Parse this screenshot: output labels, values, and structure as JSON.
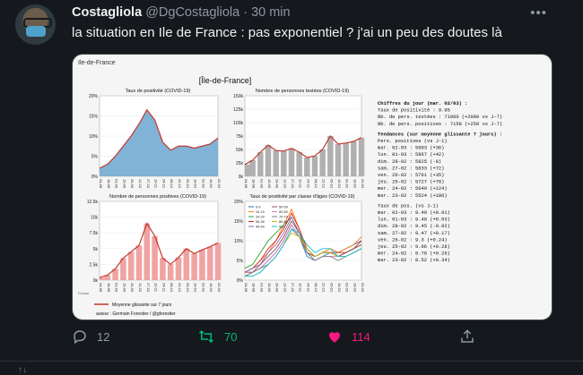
{
  "tweet": {
    "display_name": "Costagliola",
    "handle": "@DgCostagliola",
    "time": "· 30 min",
    "text": "la situation en Ile de France : pas exponentiel ? j'ai un peu des doutes là",
    "more_icon": "ellipsis-icon"
  },
  "actions": {
    "reply_count": "12",
    "retweet_count": "70",
    "like_count": "114"
  },
  "colors": {
    "retweet": "#00ba7c",
    "like": "#f91880",
    "muted": "#8b98a5"
  },
  "figure": {
    "corner_label": "Ile-de-France",
    "title": "[Île-de-France]",
    "panel1_title": "Taux de positivité (COVID-19)",
    "panel2_title": "Nombre de personnes testées (COVID-19)",
    "panel3_title": "Nombre de personnes positives (COVID-19)",
    "panel4_title": "Taux de positivité par classe d'âges (COVID-19)",
    "legend_label": "Moyenne glissante sur 7 jours",
    "author": "auteur : Germain Forestier / @gforestier",
    "left_tag": "Fiorian",
    "p1_ticks": [
      "20%",
      "15%",
      "10%",
      "5%",
      "0%"
    ],
    "p2_ticks": [
      "150k",
      "125k",
      "100k",
      "75k",
      "50k",
      "25k",
      "0k"
    ],
    "p3_ticks": [
      "12.5k",
      "10k",
      "7.5k",
      "5k",
      "2.5k",
      "0k"
    ],
    "p4_ticks": [
      "20%",
      "15%",
      "10%",
      "5%",
      "0%"
    ],
    "x_ticks": [
      "04-08",
      "18-08",
      "01-09",
      "15-09",
      "29-09",
      "13-10",
      "27-10",
      "10-11",
      "24-11",
      "08-12",
      "22-12",
      "05-01",
      "19-01",
      "02-02",
      "16-02",
      "02-03"
    ],
    "age_legend": [
      "0-9",
      "10-19",
      "20-29",
      "30-39",
      "40-49",
      "50-59",
      "60-69",
      "70-79",
      "80-89",
      "90+"
    ],
    "stats": {
      "header": "Chiffres du jour (mar. 02/03) :",
      "lines": [
        "Taux de positivité    : 9.95",
        "Nb. de pers. testées  : 71960 (+2090 vs J-7)",
        "Nb. de pers. positives : 7158 (+250 vs J-7)"
      ],
      "trend_header": "Tendances (sur moyenne glissante 7 jours) :",
      "pos_header": "Pers. positives            (vs J-1)",
      "pos_rows": [
        "mar. 02-03 : 5903  (+36)",
        "lun. 01-03 : 5867  (+42)",
        "dim. 28-02 : 5825  (-8)",
        "sam. 27-02 : 5833  (+72)",
        "ven. 26-02 : 5761  (+35)",
        "jeu. 25-02 : 5727  (+78)",
        "mer. 24-02 : 5649  (+124)",
        "mar. 23-02 : 5524  (+186)"
      ],
      "taux_header": "Taux de pos.               (vs J-1)",
      "taux_rows": [
        "mar. 02-03 : 9.49  (+0.01)",
        "lun. 01-03 : 9.48  (+0.03)",
        "dim. 28-02 : 9.45  (-0.02)",
        "sam. 27-02 : 9.47  (+0.17)",
        "ven. 26-02 : 9.3   (+0.24)",
        "jeu. 25-02 : 9.06  (+0.28)",
        "mer. 24-02 : 8.78  (+0.26)",
        "mar. 23-02 : 8.52  (+0.34)"
      ]
    }
  },
  "chart_data": [
    {
      "type": "area",
      "title": "Taux de positivité (COVID-19)",
      "x": [
        "04-08",
        "18-08",
        "01-09",
        "15-09",
        "29-09",
        "13-10",
        "27-10",
        "10-11",
        "24-11",
        "08-12",
        "22-12",
        "05-01",
        "19-01",
        "02-02",
        "16-02",
        "02-03"
      ],
      "values": [
        2.0,
        3.0,
        5.0,
        7.5,
        10.0,
        13.0,
        16.5,
        14.0,
        8.5,
        6.5,
        7.5,
        7.5,
        7.0,
        7.5,
        8.0,
        9.5
      ],
      "ylim": [
        0,
        20
      ],
      "color": "#6aa6cf"
    },
    {
      "type": "bar",
      "title": "Nombre de personnes testées (COVID-19)",
      "x": [
        "04-08",
        "18-08",
        "01-09",
        "15-09",
        "29-09",
        "13-10",
        "27-10",
        "10-11",
        "24-11",
        "08-12",
        "22-12",
        "05-01",
        "19-01",
        "02-02",
        "16-02",
        "02-03"
      ],
      "values": [
        22,
        30,
        45,
        58,
        48,
        47,
        52,
        45,
        35,
        38,
        50,
        75,
        60,
        62,
        65,
        72
      ],
      "ylim": [
        0,
        150
      ],
      "unit": "k",
      "color": "#b0b0b0"
    },
    {
      "type": "bar",
      "title": "Nombre de personnes positives (COVID-19)",
      "x": [
        "04-08",
        "18-08",
        "01-09",
        "15-09",
        "29-09",
        "13-10",
        "27-10",
        "10-11",
        "24-11",
        "08-12",
        "22-12",
        "05-01",
        "19-01",
        "02-02",
        "16-02",
        "02-03"
      ],
      "values": [
        0.4,
        0.8,
        1.8,
        3.5,
        4.5,
        5.5,
        9.0,
        7.0,
        3.5,
        2.5,
        3.6,
        5.0,
        4.2,
        4.8,
        5.3,
        5.9
      ],
      "ylim": [
        0,
        12.5
      ],
      "unit": "k",
      "color": "#f0a3a3"
    },
    {
      "type": "line",
      "title": "Taux de positivité par classe d'âges (COVID-19)",
      "x": [
        "04-08",
        "18-08",
        "01-09",
        "15-09",
        "29-09",
        "13-10",
        "27-10",
        "10-11",
        "24-11",
        "08-12",
        "22-12",
        "05-01",
        "19-01",
        "02-02",
        "16-02",
        "02-03"
      ],
      "ylim": [
        0,
        20
      ],
      "series": [
        {
          "name": "0-9",
          "color": "#1f77b4",
          "values": [
            1,
            2,
            3,
            5,
            7,
            10,
            14,
            11,
            6,
            5,
            6,
            7,
            7,
            8,
            9,
            10
          ]
        },
        {
          "name": "10-19",
          "color": "#ff7f0e",
          "values": [
            2,
            3,
            5,
            7,
            10,
            14,
            18,
            13,
            7,
            6,
            7,
            8,
            7,
            8,
            9,
            11
          ]
        },
        {
          "name": "20-29",
          "color": "#2ca02c",
          "values": [
            3,
            4,
            7,
            10,
            12,
            14,
            16,
            12,
            7,
            6,
            7,
            7,
            6,
            7,
            8,
            9
          ]
        },
        {
          "name": "30-39",
          "color": "#d62728",
          "values": [
            2,
            3,
            5,
            8,
            10,
            13,
            17,
            13,
            8,
            6,
            7,
            7,
            7,
            7,
            8,
            10
          ]
        },
        {
          "name": "40-49",
          "color": "#9467bd",
          "values": [
            2,
            3,
            4,
            7,
            9,
            12,
            16,
            12,
            7,
            6,
            7,
            7,
            6,
            7,
            8,
            9
          ]
        },
        {
          "name": "50-59",
          "color": "#8c564b",
          "values": [
            2,
            2,
            4,
            6,
            8,
            11,
            15,
            12,
            7,
            6,
            7,
            7,
            6,
            7,
            8,
            9
          ]
        },
        {
          "name": "60-69",
          "color": "#e377c2",
          "values": [
            1,
            2,
            3,
            5,
            7,
            10,
            14,
            11,
            7,
            5,
            6,
            6,
            6,
            6,
            7,
            8
          ]
        },
        {
          "name": "70-79",
          "color": "#7f7f7f",
          "values": [
            1,
            2,
            3,
            4,
            6,
            9,
            13,
            11,
            7,
            5,
            6,
            6,
            5,
            6,
            7,
            8
          ]
        },
        {
          "name": "80-89",
          "color": "#bcbd22",
          "values": [
            1,
            1,
            2,
            4,
            6,
            9,
            12,
            11,
            8,
            6,
            7,
            7,
            6,
            6,
            7,
            8
          ]
        },
        {
          "name": "90+",
          "color": "#17becf",
          "values": [
            1,
            1,
            2,
            4,
            6,
            9,
            13,
            12,
            9,
            7,
            8,
            8,
            6,
            6,
            7,
            8
          ]
        }
      ]
    }
  ]
}
